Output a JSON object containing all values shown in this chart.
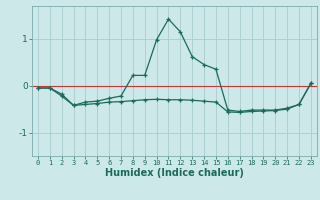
{
  "title": "",
  "xlabel": "Humidex (Indice chaleur)",
  "bg_color": "#cce8e8",
  "grid_color": "#aacccc",
  "line_color": "#1a6b5a",
  "xlim": [
    -0.5,
    23.5
  ],
  "ylim": [
    -1.5,
    1.7
  ],
  "yticks": [
    -1,
    0,
    1
  ],
  "xticks": [
    0,
    1,
    2,
    3,
    4,
    5,
    6,
    7,
    8,
    9,
    10,
    11,
    12,
    13,
    14,
    15,
    16,
    17,
    18,
    19,
    20,
    21,
    22,
    23
  ],
  "series1_x": [
    0,
    1,
    2,
    3,
    4,
    5,
    6,
    7,
    8,
    9,
    10,
    11,
    12,
    13,
    14,
    15,
    16,
    17,
    18,
    19,
    20,
    21,
    22,
    23
  ],
  "series1_y": [
    -0.05,
    -0.05,
    -0.18,
    -0.42,
    -0.35,
    -0.33,
    -0.27,
    -0.22,
    0.22,
    0.22,
    0.98,
    1.42,
    1.15,
    0.62,
    0.45,
    0.35,
    -0.52,
    -0.55,
    -0.52,
    -0.52,
    -0.52,
    -0.48,
    -0.4,
    0.05
  ],
  "series2_x": [
    0,
    1,
    2,
    3,
    4,
    5,
    6,
    7,
    8,
    9,
    10,
    11,
    12,
    13,
    14,
    15,
    16,
    17,
    18,
    19,
    20,
    21,
    22,
    23
  ],
  "series2_y": [
    -0.05,
    -0.05,
    -0.22,
    -0.42,
    -0.4,
    -0.38,
    -0.35,
    -0.34,
    -0.32,
    -0.3,
    -0.29,
    -0.3,
    -0.3,
    -0.31,
    -0.33,
    -0.35,
    -0.56,
    -0.57,
    -0.55,
    -0.54,
    -0.53,
    -0.5,
    -0.4,
    0.05
  ],
  "hline_color": "#cc3333",
  "tick_color": "#1a6b5a",
  "label_color": "#1a6b5a"
}
